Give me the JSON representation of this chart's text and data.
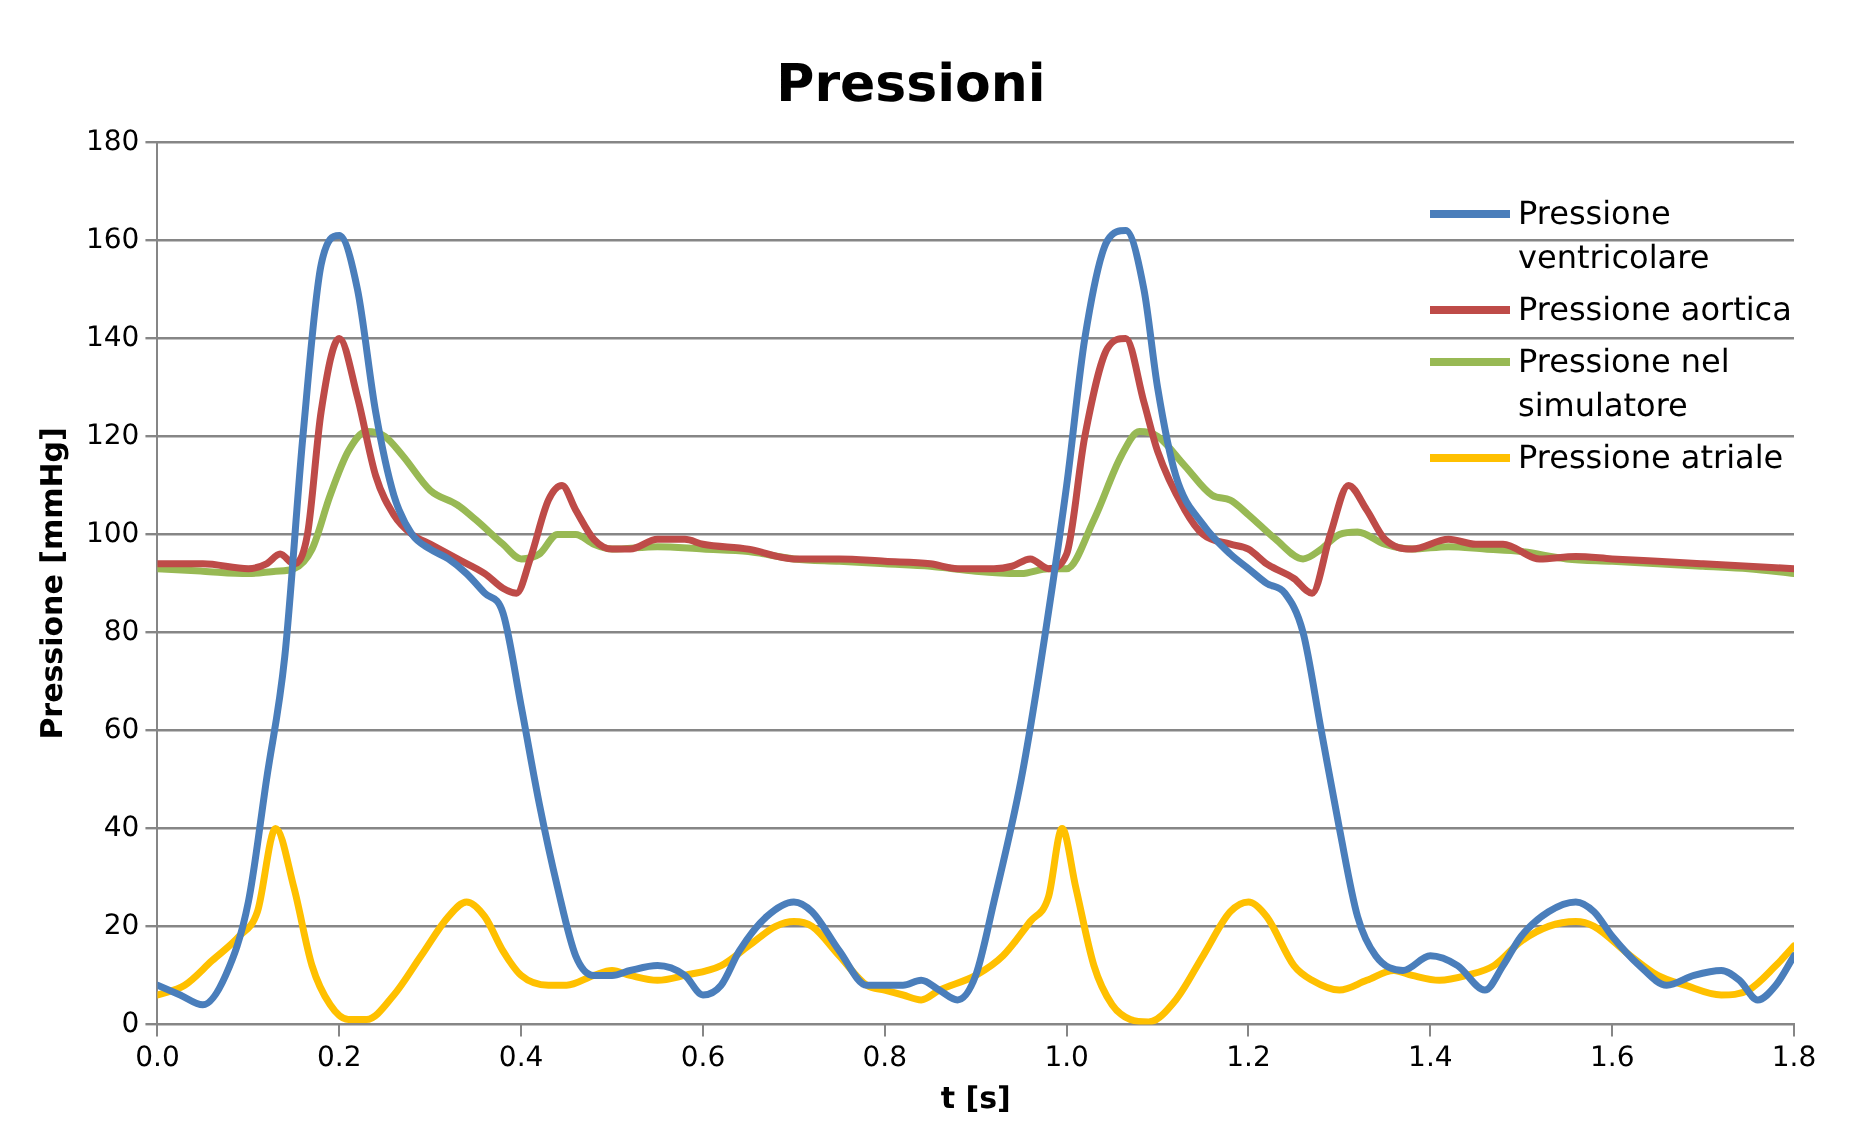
{
  "chart_data": {
    "type": "line",
    "title": "Pressioni",
    "xlabel": "t [s]",
    "ylabel": "Pressione [mmHg]",
    "xlim": [
      0,
      1.8
    ],
    "xticks": [
      {
        "value": 0,
        "label": "0.0"
      },
      {
        "value": 0.2,
        "label": "0.2"
      },
      {
        "value": 0.4,
        "label": "0.4"
      },
      {
        "value": 0.6,
        "label": "0.6"
      },
      {
        "value": 0.8,
        "label": "0.8"
      },
      {
        "value": 1,
        "label": "1.0"
      },
      {
        "value": 1.2,
        "label": "1.2"
      },
      {
        "value": 1.4,
        "label": "1.4"
      },
      {
        "value": 1.6,
        "label": "1.6"
      },
      {
        "value": 1.8,
        "label": "1.8"
      }
    ],
    "ylim": [
      0,
      180
    ],
    "yticks": [
      0,
      20,
      40,
      60,
      80,
      100,
      120,
      140,
      160,
      180
    ],
    "grid": "y",
    "legend": "top right",
    "marker": "none",
    "line_style": "solid",
    "series": [
      {
        "name": "Pressione ventricolare",
        "color": "#4a7ebb",
        "x": [
          0,
          0.025,
          0.05,
          0.075,
          0.1,
          0.12,
          0.14,
          0.16,
          0.18,
          0.2,
          0.22,
          0.24,
          0.26,
          0.28,
          0.3,
          0.32,
          0.34,
          0.36,
          0.38,
          0.4,
          0.42,
          0.44,
          0.46,
          0.48,
          0.5,
          0.52,
          0.55,
          0.58,
          0.6,
          0.62,
          0.64,
          0.67,
          0.7,
          0.72,
          0.75,
          0.78,
          0.8,
          0.82,
          0.84,
          0.86,
          0.88,
          0.9,
          0.92,
          0.95,
          0.97,
          1,
          1.02,
          1.045,
          1.065,
          1.085,
          1.1,
          1.12,
          1.15,
          1.18,
          1.2,
          1.22,
          1.24,
          1.26,
          1.28,
          1.3,
          1.32,
          1.34,
          1.37,
          1.4,
          1.43,
          1.46,
          1.48,
          1.5,
          1.53,
          1.56,
          1.58,
          1.6,
          1.63,
          1.66,
          1.69,
          1.72,
          1.74,
          1.76,
          1.78,
          1.8
        ],
        "values": [
          8,
          6,
          4,
          10,
          25,
          50,
          75,
          120,
          155,
          161,
          150,
          125,
          108,
          100,
          97,
          95,
          92,
          88,
          84,
          65,
          45,
          28,
          14,
          10,
          10,
          11,
          12,
          10,
          6,
          8,
          15,
          22,
          25,
          23,
          15,
          8,
          8,
          8,
          9,
          7,
          5,
          10,
          25,
          50,
          72,
          110,
          140,
          160,
          162,
          150,
          130,
          112,
          102,
          96,
          93,
          90,
          88,
          80,
          60,
          40,
          22,
          14,
          11,
          14,
          12,
          7,
          12,
          18,
          23,
          25,
          23,
          18,
          12,
          8,
          10,
          11,
          9,
          5,
          8,
          14
        ]
      },
      {
        "name": "Pressione aortica",
        "color": "#be4b48",
        "x": [
          0,
          0.05,
          0.1,
          0.12,
          0.135,
          0.15,
          0.165,
          0.18,
          0.2,
          0.22,
          0.24,
          0.26,
          0.28,
          0.3,
          0.33,
          0.36,
          0.38,
          0.395,
          0.41,
          0.43,
          0.445,
          0.46,
          0.48,
          0.5,
          0.52,
          0.55,
          0.58,
          0.6,
          0.65,
          0.7,
          0.75,
          0.8,
          0.85,
          0.88,
          0.9,
          0.92,
          0.94,
          0.96,
          0.98,
          1,
          1.02,
          1.045,
          1.065,
          1.085,
          1.1,
          1.13,
          1.15,
          1.18,
          1.2,
          1.22,
          1.25,
          1.27,
          1.29,
          1.31,
          1.33,
          1.35,
          1.38,
          1.42,
          1.45,
          1.48,
          1.52,
          1.56,
          1.6,
          1.65,
          1.7,
          1.75,
          1.8
        ],
        "values": [
          94,
          94,
          93,
          94,
          96,
          94,
          100,
          125,
          140,
          128,
          112,
          104,
          100,
          98,
          95,
          92,
          89,
          88,
          95,
          107,
          110,
          105,
          99,
          97,
          97,
          99,
          99,
          98,
          97,
          95,
          95,
          94.5,
          94,
          93,
          93,
          93,
          93.5,
          95,
          93,
          96,
          120,
          138,
          140,
          127,
          117,
          105,
          100,
          98,
          97,
          94,
          91,
          88,
          100,
          110,
          105,
          99,
          97,
          99,
          98,
          98,
          95,
          95.5,
          95,
          94.5,
          94,
          93.5,
          93
        ]
      },
      {
        "name": "Pressione nel simulatore",
        "color": "#98b954",
        "x": [
          0,
          0.05,
          0.1,
          0.13,
          0.15,
          0.17,
          0.19,
          0.21,
          0.23,
          0.25,
          0.27,
          0.3,
          0.33,
          0.35,
          0.38,
          0.4,
          0.42,
          0.44,
          0.46,
          0.48,
          0.5,
          0.55,
          0.6,
          0.65,
          0.7,
          0.75,
          0.8,
          0.85,
          0.9,
          0.95,
          0.98,
          1,
          1.03,
          1.06,
          1.08,
          1.1,
          1.13,
          1.16,
          1.18,
          1.2,
          1.23,
          1.26,
          1.28,
          1.3,
          1.32,
          1.35,
          1.38,
          1.42,
          1.46,
          1.5,
          1.55,
          1.6,
          1.65,
          1.7,
          1.75,
          1.8
        ],
        "values": [
          93,
          92.5,
          92,
          92.5,
          93,
          97,
          108,
          117,
          121,
          120,
          116,
          109,
          106,
          103,
          98,
          95,
          96,
          100,
          100,
          98,
          97,
          97.5,
          97,
          96.5,
          95,
          94.5,
          94,
          93.5,
          92.5,
          92,
          93,
          93,
          103,
          116,
          121,
          120,
          114,
          108,
          107,
          104,
          99,
          95,
          97,
          100,
          100.5,
          98,
          97,
          97.5,
          97,
          96.5,
          95,
          94.5,
          94,
          93.5,
          93,
          92
        ]
      },
      {
        "name": "Pressione atriale",
        "color": "#ffc000",
        "x": [
          0,
          0.03,
          0.06,
          0.09,
          0.11,
          0.13,
          0.15,
          0.17,
          0.19,
          0.21,
          0.23,
          0.26,
          0.29,
          0.32,
          0.34,
          0.36,
          0.38,
          0.4,
          0.43,
          0.45,
          0.48,
          0.5,
          0.52,
          0.55,
          0.58,
          0.62,
          0.65,
          0.68,
          0.7,
          0.72,
          0.75,
          0.78,
          0.8,
          0.82,
          0.84,
          0.86,
          0.9,
          0.93,
          0.96,
          0.98,
          0.995,
          1.01,
          1.03,
          1.05,
          1.07,
          1.09,
          1.12,
          1.15,
          1.18,
          1.2,
          1.22,
          1.25,
          1.27,
          1.3,
          1.33,
          1.36,
          1.38,
          1.41,
          1.44,
          1.47,
          1.5,
          1.53,
          1.56,
          1.58,
          1.62,
          1.65,
          1.68,
          1.72,
          1.75,
          1.78,
          1.8
        ],
        "values": [
          6,
          8,
          13,
          18,
          23,
          40,
          28,
          12,
          4,
          1,
          1,
          6,
          14,
          22,
          25,
          22,
          15,
          10,
          8,
          8,
          10,
          11,
          10,
          9,
          10,
          12,
          16,
          20,
          21,
          20,
          14,
          8,
          7,
          6,
          5,
          7,
          10,
          14,
          21,
          26,
          40,
          28,
          12,
          4,
          1,
          0.5,
          5,
          14,
          23,
          25,
          22,
          12,
          9,
          7,
          9,
          11,
          10,
          9,
          10,
          12,
          17,
          20,
          21,
          20,
          14,
          10,
          8,
          6,
          7,
          12,
          16
        ]
      }
    ]
  }
}
